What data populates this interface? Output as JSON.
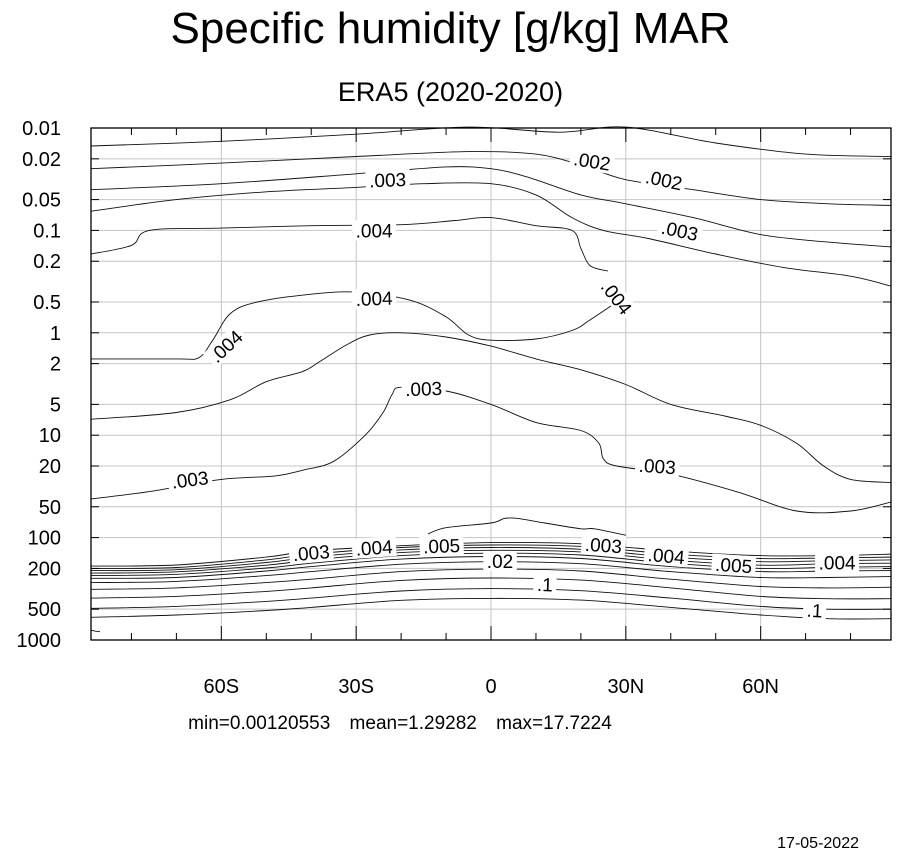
{
  "figure": {
    "title": "Specific humidity [g/kg] MAR",
    "subtitle": "ERA5 (2020-2020)",
    "stats": {
      "min": "min=0.00120553",
      "mean": "mean=1.29282",
      "max": "max=17.7224"
    },
    "date": "17-05-2022"
  },
  "chart_data": {
    "type": "contour",
    "title": "Specific humidity [g/kg] MAR",
    "subtitle": "ERA5 (2020-2020)",
    "x": {
      "label": "",
      "range": [
        -89,
        89
      ],
      "ticks": [
        {
          "value": -60,
          "label": "60S"
        },
        {
          "value": -30,
          "label": "30S"
        },
        {
          "value": 0,
          "label": "0"
        },
        {
          "value": 30,
          "label": "30N"
        },
        {
          "value": 60,
          "label": "60N"
        }
      ]
    },
    "y": {
      "label": "",
      "scale": "log",
      "inverted": true,
      "range": [
        0.01,
        1000
      ],
      "ticks": [
        {
          "value": 0.01,
          "label": "0.01"
        },
        {
          "value": 0.02,
          "label": "0.02"
        },
        {
          "value": 0.05,
          "label": "0.05"
        },
        {
          "value": 0.1,
          "label": "0.1"
        },
        {
          "value": 0.2,
          "label": "0.2"
        },
        {
          "value": 0.5,
          "label": "0.5"
        },
        {
          "value": 1,
          "label": "1"
        },
        {
          "value": 2,
          "label": "2"
        },
        {
          "value": 5,
          "label": "5"
        },
        {
          "value": 10,
          "label": "10"
        },
        {
          "value": 20,
          "label": "20"
        },
        {
          "value": 50,
          "label": "50"
        },
        {
          "value": 100,
          "label": "100"
        },
        {
          "value": 200,
          "label": "200"
        },
        {
          "value": 500,
          "label": "500"
        },
        {
          "value": 1000,
          "label": "1000"
        }
      ]
    },
    "grid": true,
    "contours": [
      {
        "points": [
          [
            -89,
            0.015
          ],
          [
            -60,
            0.0135
          ],
          [
            -30,
            0.0115
          ],
          [
            -5,
            0.0098
          ],
          [
            15,
            0.011
          ],
          [
            30,
            0.0098
          ],
          [
            50,
            0.014
          ],
          [
            70,
            0.018
          ],
          [
            89,
            0.019
          ]
        ]
      },
      {
        "points": [
          [
            -89,
            0.025
          ],
          [
            -60,
            0.022
          ],
          [
            -30,
            0.019
          ],
          [
            -5,
            0.017
          ],
          [
            10,
            0.018
          ],
          [
            20,
            0.023
          ],
          [
            30,
            0.032
          ],
          [
            45,
            0.04
          ],
          [
            60,
            0.05
          ],
          [
            75,
            0.055
          ],
          [
            89,
            0.057
          ]
        ]
      },
      {
        "points": [
          [
            -89,
            0.04
          ],
          [
            -60,
            0.035
          ],
          [
            -30,
            0.028
          ],
          [
            -10,
            0.024
          ],
          [
            0,
            0.025
          ],
          [
            8,
            0.03
          ],
          [
            20,
            0.045
          ],
          [
            30,
            0.055
          ],
          [
            45,
            0.075
          ],
          [
            60,
            0.11
          ],
          [
            75,
            0.13
          ],
          [
            89,
            0.145
          ]
        ]
      },
      {
        "points": [
          [
            -89,
            0.065
          ],
          [
            -70,
            0.05
          ],
          [
            -50,
            0.042
          ],
          [
            -30,
            0.038
          ],
          [
            -15,
            0.035
          ],
          [
            0,
            0.035
          ],
          [
            10,
            0.045
          ],
          [
            18,
            0.075
          ],
          [
            25,
            0.1
          ],
          [
            35,
            0.12
          ],
          [
            50,
            0.17
          ],
          [
            65,
            0.23
          ],
          [
            80,
            0.28
          ],
          [
            89,
            0.35
          ]
        ]
      },
      {
        "points": [
          [
            -89,
            0.17
          ],
          [
            -80,
            0.14
          ],
          [
            -76,
            0.1
          ],
          [
            -60,
            0.095
          ],
          [
            -40,
            0.09
          ],
          [
            -20,
            0.088
          ],
          [
            -8,
            0.08
          ],
          [
            0,
            0.075
          ],
          [
            10,
            0.09
          ],
          [
            18,
            0.1
          ],
          [
            20,
            0.15
          ],
          [
            22,
            0.22
          ],
          [
            26,
            0.25
          ]
        ]
      },
      {
        "points": [
          [
            -89,
            1.8
          ],
          [
            -70,
            1.8
          ],
          [
            -65,
            1.75
          ],
          [
            -62,
            1.2
          ],
          [
            -58,
            0.65
          ],
          [
            -52,
            0.5
          ],
          [
            -40,
            0.42
          ],
          [
            -30,
            0.4
          ],
          [
            -18,
            0.48
          ],
          [
            -10,
            0.7
          ],
          [
            -5,
            1.05
          ],
          [
            0,
            1.18
          ],
          [
            10,
            1.15
          ],
          [
            18,
            0.95
          ],
          [
            22,
            0.75
          ],
          [
            28,
            0.5
          ]
        ]
      },
      {
        "points": [
          [
            -89,
            7
          ],
          [
            -70,
            6
          ],
          [
            -58,
            4.5
          ],
          [
            -50,
            3
          ],
          [
            -42,
            2.4
          ],
          [
            -38,
            1.9
          ],
          [
            -32,
            1.3
          ],
          [
            -27,
            1.05
          ],
          [
            -20,
            1.0
          ],
          [
            -10,
            1.1
          ],
          [
            0,
            1.35
          ],
          [
            10,
            1.8
          ],
          [
            20,
            2.3
          ],
          [
            30,
            3.2
          ],
          [
            40,
            5
          ],
          [
            52,
            6.5
          ],
          [
            60,
            8
          ],
          [
            68,
            12
          ],
          [
            74,
            20
          ],
          [
            80,
            27
          ],
          [
            89,
            29
          ]
        ]
      },
      {
        "points": [
          [
            -89,
            42
          ],
          [
            -75,
            35
          ],
          [
            -60,
            27
          ],
          [
            -48,
            25
          ],
          [
            -42,
            22
          ],
          [
            -35,
            18
          ],
          [
            -28,
            10
          ],
          [
            -24,
            6
          ],
          [
            -22,
            4
          ],
          [
            -20,
            3.4
          ],
          [
            -10,
            3.7
          ],
          [
            0,
            5
          ],
          [
            10,
            7.5
          ],
          [
            20,
            9
          ],
          [
            24,
            12
          ],
          [
            25,
            17
          ],
          [
            28,
            20
          ],
          [
            40,
            24
          ],
          [
            55,
            36
          ],
          [
            68,
            55
          ],
          [
            80,
            55
          ],
          [
            89,
            45
          ]
        ]
      },
      {
        "points": [
          [
            -14,
            92
          ],
          [
            -10,
            80
          ],
          [
            0,
            72
          ],
          [
            3,
            65
          ],
          [
            6,
            65
          ],
          [
            12,
            72
          ],
          [
            20,
            82
          ],
          [
            23,
            82
          ],
          [
            30,
            95
          ]
        ]
      },
      {
        "points": [
          [
            -89,
            190
          ],
          [
            -70,
            185
          ],
          [
            -50,
            155
          ],
          [
            -40,
            135
          ],
          [
            -20,
            120
          ],
          [
            0,
            112
          ],
          [
            20,
            115
          ],
          [
            40,
            135
          ],
          [
            60,
            150
          ],
          [
            75,
            150
          ],
          [
            89,
            145
          ]
        ]
      },
      {
        "points": [
          [
            -89,
            200
          ],
          [
            -70,
            196
          ],
          [
            -50,
            165
          ],
          [
            -40,
            145
          ],
          [
            -20,
            125
          ],
          [
            0,
            118
          ],
          [
            20,
            122
          ],
          [
            40,
            145
          ],
          [
            60,
            160
          ],
          [
            75,
            158
          ],
          [
            89,
            155
          ]
        ]
      },
      {
        "points": [
          [
            -89,
            210
          ],
          [
            -70,
            206
          ],
          [
            -50,
            175
          ],
          [
            -40,
            155
          ],
          [
            -20,
            132
          ],
          [
            0,
            125
          ],
          [
            20,
            130
          ],
          [
            40,
            155
          ],
          [
            60,
            172
          ],
          [
            75,
            168
          ],
          [
            89,
            165
          ]
        ]
      },
      {
        "points": [
          [
            -89,
            222
          ],
          [
            -70,
            216
          ],
          [
            -50,
            186
          ],
          [
            -40,
            166
          ],
          [
            -20,
            140
          ],
          [
            0,
            133
          ],
          [
            20,
            138
          ],
          [
            40,
            166
          ],
          [
            60,
            186
          ],
          [
            75,
            180
          ],
          [
            89,
            178
          ]
        ]
      },
      {
        "points": [
          [
            -89,
            235
          ],
          [
            -70,
            228
          ],
          [
            -50,
            198
          ],
          [
            -40,
            178
          ],
          [
            -20,
            150
          ],
          [
            0,
            142
          ],
          [
            20,
            148
          ],
          [
            40,
            178
          ],
          [
            60,
            200
          ],
          [
            75,
            195
          ],
          [
            89,
            192
          ]
        ]
      },
      {
        "points": [
          [
            -89,
            250
          ],
          [
            -70,
            245
          ],
          [
            -50,
            212
          ],
          [
            -40,
            192
          ],
          [
            -20,
            162
          ],
          [
            0,
            153
          ],
          [
            20,
            160
          ],
          [
            40,
            192
          ],
          [
            60,
            215
          ],
          [
            75,
            212
          ],
          [
            89,
            210
          ]
        ]
      },
      {
        "points": [
          [
            -89,
            275
          ],
          [
            -70,
            268
          ],
          [
            -50,
            235
          ],
          [
            -40,
            215
          ],
          [
            -20,
            182
          ],
          [
            0,
            172
          ],
          [
            20,
            180
          ],
          [
            40,
            215
          ],
          [
            60,
            245
          ],
          [
            75,
            245
          ],
          [
            89,
            240
          ]
        ]
      },
      {
        "points": [
          [
            -89,
            320
          ],
          [
            -70,
            310
          ],
          [
            -50,
            275
          ],
          [
            -40,
            255
          ],
          [
            -20,
            215
          ],
          [
            0,
            203
          ],
          [
            20,
            212
          ],
          [
            40,
            255
          ],
          [
            60,
            300
          ],
          [
            75,
            310
          ],
          [
            89,
            305
          ]
        ]
      },
      {
        "points": [
          [
            -89,
            390
          ],
          [
            -70,
            375
          ],
          [
            -50,
            335
          ],
          [
            -40,
            310
          ],
          [
            -20,
            262
          ],
          [
            0,
            248
          ],
          [
            20,
            260
          ],
          [
            40,
            310
          ],
          [
            60,
            375
          ],
          [
            75,
            395
          ],
          [
            89,
            395
          ]
        ]
      },
      {
        "points": [
          [
            -89,
            490
          ],
          [
            -70,
            470
          ],
          [
            -50,
            420
          ],
          [
            -40,
            390
          ],
          [
            -20,
            332
          ],
          [
            0,
            315
          ],
          [
            20,
            330
          ],
          [
            40,
            390
          ],
          [
            60,
            470
          ],
          [
            75,
            500
          ],
          [
            89,
            500
          ]
        ]
      },
      {
        "points": [
          [
            -89,
            600
          ],
          [
            -70,
            570
          ],
          [
            -50,
            515
          ],
          [
            -40,
            480
          ],
          [
            -20,
            410
          ],
          [
            0,
            392
          ],
          [
            20,
            408
          ],
          [
            40,
            480
          ],
          [
            60,
            570
          ],
          [
            75,
            620
          ],
          [
            89,
            620
          ]
        ]
      },
      {
        "points": [
          [
            -89,
            800
          ],
          [
            -88,
            820
          ],
          [
            -87,
            830
          ]
        ]
      }
    ],
    "contour_labels": [
      {
        "text": ".002",
        "x": 22.5,
        "y": 0.021,
        "angle": 9
      },
      {
        "text": ".002",
        "x": 38.5,
        "y": 0.032,
        "angle": 12
      },
      {
        "text": ".003",
        "x": -23,
        "y": 0.032,
        "angle": -2
      },
      {
        "text": ".003",
        "x": 42,
        "y": 0.1,
        "angle": 12
      },
      {
        "text": ".004",
        "x": -26,
        "y": 0.1,
        "angle": 0
      },
      {
        "text": ".004",
        "x": 28,
        "y": 0.45,
        "angle": 52
      },
      {
        "text": ".004",
        "x": -59,
        "y": 1.35,
        "angle": -43
      },
      {
        "text": ".004",
        "x": -26,
        "y": 0.46,
        "angle": -2
      },
      {
        "text": ".003",
        "x": -15,
        "y": 3.5,
        "angle": -2
      },
      {
        "text": ".003",
        "x": 37,
        "y": 20,
        "angle": 4
      },
      {
        "text": ".003",
        "x": -67,
        "y": 27,
        "angle": -7
      },
      {
        "text": ".003",
        "x": -40,
        "y": 140,
        "angle": -5
      },
      {
        "text": ".004",
        "x": -26,
        "y": 125,
        "angle": -4
      },
      {
        "text": ".005",
        "x": -11,
        "y": 120,
        "angle": -2
      },
      {
        "text": ".003",
        "x": 25,
        "y": 118,
        "angle": 4
      },
      {
        "text": ".004",
        "x": 39,
        "y": 150,
        "angle": 5
      },
      {
        "text": ".005",
        "x": 54,
        "y": 185,
        "angle": 4
      },
      {
        "text": ".004",
        "x": 77,
        "y": 175,
        "angle": 0
      },
      {
        "text": ".02",
        "x": 2,
        "y": 170,
        "angle": 0
      },
      {
        "text": ".1",
        "x": 12,
        "y": 285,
        "angle": 2
      },
      {
        "text": ".1",
        "x": 72,
        "y": 510,
        "angle": 3
      }
    ]
  }
}
